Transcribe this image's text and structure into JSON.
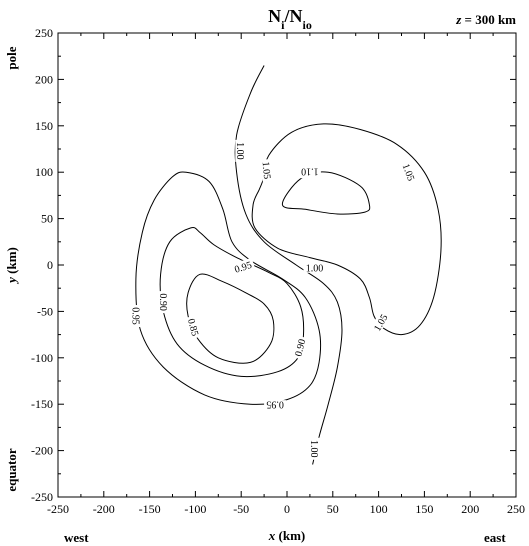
{
  "chart_data": {
    "type": "contour",
    "title_main": "N",
    "title_sub1": "i",
    "title_slash": "/N",
    "title_sub2": "io",
    "annotation_var": "z",
    "annotation_value": " = 300 km",
    "xlabel_var": "x",
    "xlabel_unit": " (km)",
    "ylabel_var": "y",
    "ylabel_unit": " (km)",
    "xlim": [
      -250,
      250
    ],
    "ylim": [
      -250,
      250
    ],
    "xticks": [
      -250,
      -200,
      -150,
      -100,
      -50,
      0,
      50,
      100,
      150,
      200,
      250
    ],
    "yticks": [
      -250,
      -200,
      -150,
      -100,
      -50,
      0,
      50,
      100,
      150,
      200,
      250
    ],
    "x_side_labels": {
      "left": "west",
      "right": "east"
    },
    "y_side_labels": {
      "top": "pole",
      "bottom": "equator"
    },
    "grid": false,
    "contours": [
      {
        "level": "1.10",
        "points": [
          [
            -5,
            65
          ],
          [
            15,
            93
          ],
          [
            45,
            100
          ],
          [
            80,
            85
          ],
          [
            90,
            65
          ],
          [
            85,
            57
          ],
          [
            55,
            55
          ],
          [
            20,
            60
          ],
          [
            -5,
            65
          ]
        ],
        "labels": [
          {
            "text": "1.10",
            "x": 25,
            "y": 100,
            "rot": 180
          }
        ]
      },
      {
        "level": "1.05",
        "points": [
          [
            -25,
            95
          ],
          [
            -20,
            118
          ],
          [
            5,
            143
          ],
          [
            40,
            152
          ],
          [
            80,
            146
          ],
          [
            120,
            130
          ],
          [
            150,
            100
          ],
          [
            165,
            60
          ],
          [
            168,
            15
          ],
          [
            160,
            -35
          ],
          [
            145,
            -65
          ],
          [
            125,
            -75
          ],
          [
            105,
            -68
          ],
          [
            95,
            -55
          ],
          [
            90,
            -35
          ],
          [
            80,
            -15
          ],
          [
            55,
            0
          ],
          [
            25,
            8
          ],
          [
            -10,
            18
          ],
          [
            -35,
            40
          ],
          [
            -37,
            65
          ],
          [
            -30,
            82
          ],
          [
            -25,
            95
          ]
        ],
        "labels": [
          {
            "text": "1.05",
            "x": -22,
            "y": 102,
            "rot": 85
          },
          {
            "text": "1.05",
            "x": 133,
            "y": 100,
            "rot": 70
          },
          {
            "text": "1.05",
            "x": 102,
            "y": -62,
            "rot": -60
          }
        ]
      },
      {
        "level": "1.00",
        "points": [
          [
            -25,
            215
          ],
          [
            -40,
            185
          ],
          [
            -55,
            140
          ],
          [
            -55,
            100
          ],
          [
            -45,
            55
          ],
          [
            -25,
            25
          ],
          [
            10,
            0
          ],
          [
            40,
            -20
          ],
          [
            55,
            -40
          ],
          [
            60,
            -70
          ],
          [
            55,
            -110
          ],
          [
            45,
            -150
          ],
          [
            35,
            -185
          ],
          [
            28,
            -215
          ]
        ],
        "labels": [
          {
            "text": "1.00",
            "x": -51,
            "y": 123,
            "rot": 90
          },
          {
            "text": "1.00",
            "x": 30,
            "y": -3,
            "rot": 0
          },
          {
            "text": "1.00",
            "x": 30,
            "y": -198,
            "rot": 90
          }
        ]
      },
      {
        "level": "0.95",
        "points": [
          [
            -110,
            100
          ],
          [
            -85,
            90
          ],
          [
            -70,
            60
          ],
          [
            -60,
            25
          ],
          [
            -40,
            5
          ],
          [
            -5,
            -15
          ],
          [
            20,
            -35
          ],
          [
            35,
            -70
          ],
          [
            35,
            -105
          ],
          [
            25,
            -130
          ],
          [
            0,
            -145
          ],
          [
            -40,
            -150
          ],
          [
            -90,
            -140
          ],
          [
            -135,
            -110
          ],
          [
            -160,
            -70
          ],
          [
            -165,
            -15
          ],
          [
            -158,
            35
          ],
          [
            -145,
            70
          ],
          [
            -125,
            95
          ],
          [
            -110,
            100
          ]
        ],
        "labels": [
          {
            "text": "0.95",
            "x": -48,
            "y": -2,
            "rot": -18
          },
          {
            "text": "0.95",
            "x": -165,
            "y": -55,
            "rot": 90
          },
          {
            "text": "0.95",
            "x": -13,
            "y": -151,
            "rot": 180
          }
        ]
      },
      {
        "level": "0.90",
        "points": [
          [
            -105,
            40
          ],
          [
            -95,
            35
          ],
          [
            -80,
            22
          ],
          [
            -55,
            8
          ],
          [
            -20,
            -8
          ],
          [
            0,
            -20
          ],
          [
            15,
            -45
          ],
          [
            18,
            -75
          ],
          [
            12,
            -100
          ],
          [
            -10,
            -115
          ],
          [
            -50,
            -120
          ],
          [
            -90,
            -108
          ],
          [
            -120,
            -85
          ],
          [
            -135,
            -50
          ],
          [
            -138,
            -10
          ],
          [
            -128,
            25
          ],
          [
            -105,
            40
          ]
        ],
        "labels": [
          {
            "text": "0.90",
            "x": -135,
            "y": -40,
            "rot": 90
          },
          {
            "text": "0.90",
            "x": 14,
            "y": -89,
            "rot": -75
          }
        ]
      },
      {
        "level": "0.85",
        "points": [
          [
            -95,
            -10
          ],
          [
            -70,
            -18
          ],
          [
            -45,
            -30
          ],
          [
            -25,
            -42
          ],
          [
            -15,
            -60
          ],
          [
            -18,
            -85
          ],
          [
            -40,
            -105
          ],
          [
            -75,
            -100
          ],
          [
            -97,
            -80
          ],
          [
            -108,
            -55
          ],
          [
            -108,
            -30
          ],
          [
            -95,
            -10
          ]
        ],
        "labels": [
          {
            "text": "0.85",
            "x": -102,
            "y": -67,
            "rot": 75
          }
        ]
      }
    ]
  }
}
